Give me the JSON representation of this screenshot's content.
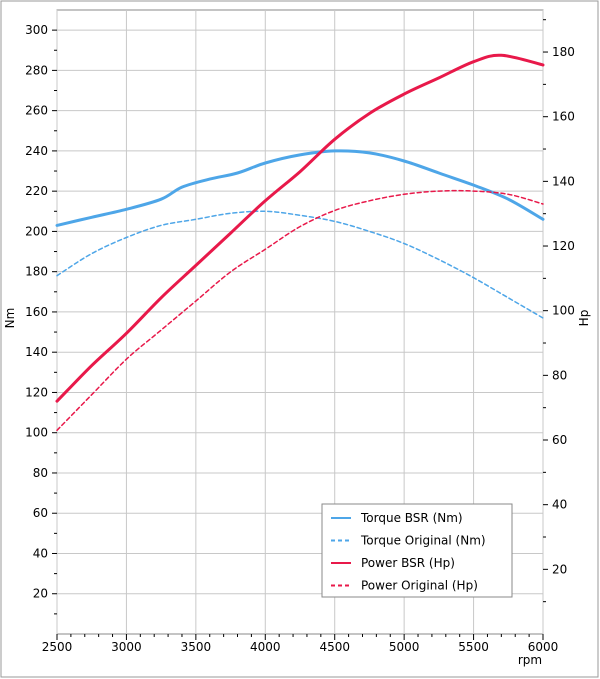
{
  "chart_data": {
    "type": "line",
    "x_label": "rpm",
    "y_left_label": "Nm",
    "y_right_label": "Hp",
    "x_range": [
      2500,
      6000
    ],
    "y_left_range": [
      0,
      310
    ],
    "y_right_range": [
      0,
      193
    ],
    "x_ticks": [
      2500,
      3000,
      3500,
      4000,
      4500,
      5000,
      5500,
      6000
    ],
    "y_left_ticks": [
      20,
      40,
      60,
      80,
      100,
      120,
      140,
      160,
      180,
      200,
      220,
      240,
      260,
      280,
      300
    ],
    "y_right_ticks": [
      20,
      40,
      60,
      80,
      100,
      120,
      140,
      160,
      180
    ],
    "grid": true,
    "legend_position": "bottom-right",
    "series": [
      {
        "name": "Torque BSR (Nm)",
        "axis": "left",
        "color": "#4ea6e8",
        "style": "solid",
        "x": [
          2500,
          2750,
          3000,
          3250,
          3400,
          3600,
          3800,
          4000,
          4250,
          4500,
          4750,
          5000,
          5250,
          5500,
          5750,
          6000
        ],
        "y": [
          203,
          207,
          211,
          216,
          222,
          226,
          229,
          234,
          238,
          240,
          239,
          235,
          229,
          223,
          216,
          206
        ]
      },
      {
        "name": "Torque Original (Nm)",
        "axis": "left",
        "color": "#4ea6e8",
        "style": "dashed",
        "x": [
          2500,
          2750,
          3000,
          3250,
          3500,
          3750,
          4000,
          4250,
          4500,
          4750,
          5000,
          5250,
          5500,
          5750,
          6000
        ],
        "y": [
          178,
          189,
          197,
          203,
          206,
          209,
          210,
          208,
          205,
          200,
          194,
          186,
          177,
          167,
          157
        ]
      },
      {
        "name": "Power BSR (Hp)",
        "axis": "right",
        "color": "#e8194a",
        "style": "solid",
        "x": [
          2500,
          2750,
          3000,
          3250,
          3500,
          3750,
          4000,
          4250,
          4500,
          4750,
          5000,
          5250,
          5500,
          5700,
          6000
        ],
        "y": [
          72,
          83,
          93,
          104,
          114,
          124,
          134,
          143,
          153,
          161,
          167,
          172,
          177,
          179,
          176
        ]
      },
      {
        "name": "Power Original (Hp)",
        "axis": "right",
        "color": "#e8194a",
        "style": "dashed",
        "x": [
          2500,
          2750,
          3000,
          3250,
          3500,
          3750,
          4000,
          4250,
          4500,
          4750,
          5000,
          5250,
          5500,
          5750,
          6000
        ],
        "y": [
          63,
          74,
          85,
          94,
          103,
          112,
          119,
          126,
          131,
          134,
          136,
          137,
          137,
          136,
          133
        ]
      }
    ]
  }
}
